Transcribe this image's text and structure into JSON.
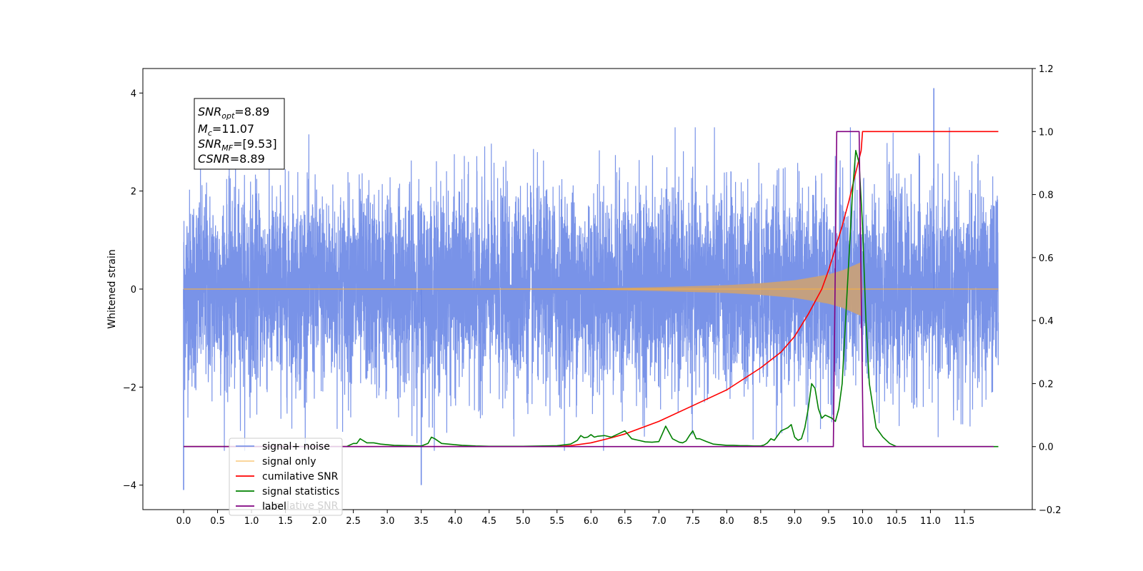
{
  "chart_data": {
    "type": "line",
    "title": "",
    "xlabel": "",
    "ylabel": "Whitened strain",
    "xlim": [
      -0.6,
      12.5
    ],
    "ylim_left": [
      -4.5,
      4.5
    ],
    "ylim_right": [
      -0.2,
      1.2
    ],
    "x_ticks": [
      0.0,
      0.5,
      1.0,
      1.5,
      2.0,
      2.5,
      3.0,
      3.5,
      4.0,
      4.5,
      5.0,
      5.5,
      6.0,
      6.5,
      7.0,
      7.5,
      8.0,
      8.5,
      9.0,
      9.5,
      10.0,
      10.5,
      11.0,
      11.5
    ],
    "x_tick_labels": [
      "0.0",
      "0.5",
      "1.0",
      "1.5",
      "2.0",
      "2.5",
      "3.0",
      "3.5",
      "4.0",
      "4.5",
      "5.0",
      "5.5",
      "6.0",
      "6.5",
      "7.0",
      "7.5",
      "8.0",
      "8.5",
      "9.0",
      "9.5",
      "10.0",
      "10.5",
      "11.0",
      "11.5"
    ],
    "y_left_ticks": [
      4,
      2,
      0,
      -2,
      -4
    ],
    "y_left_tick_labels": [
      "4",
      "2",
      "0",
      "−2",
      "−4"
    ],
    "y_right_ticks": [
      1.2,
      1.0,
      0.8,
      0.6,
      0.4,
      0.2,
      0.0,
      -0.2
    ],
    "y_right_tick_labels": [
      "1.2",
      "1.0",
      "0.8",
      "0.6",
      "0.4",
      "0.2",
      "0.0",
      "−0.2"
    ],
    "grid": false,
    "legend_position": "lower-left",
    "info_box": {
      "lines": [
        {
          "symbol": "SNR",
          "sub": "opt",
          "value": "=8.89"
        },
        {
          "symbol": "M",
          "sub": "c",
          "value": "=11.07"
        },
        {
          "symbol": "SNR",
          "sub": "MF",
          "value": "=[9.53]"
        },
        {
          "symbol": "CSNR",
          "sub": "",
          "value": "=8.89"
        }
      ]
    },
    "series": [
      {
        "name": "signal+ noise",
        "axis": "left",
        "color": "#6a87e6",
        "x_range": [
          0.0,
          12.0
        ],
        "std_estimate": 1.0,
        "observed_extremes": {
          "max": 4.1,
          "min": -4.1
        }
      },
      {
        "name": "signal only",
        "axis": "left",
        "color": "#f5b044",
        "x_range": [
          0.0,
          12.0
        ],
        "envelope": {
          "x": [
            0.0,
            6.0,
            7.0,
            8.0,
            8.5,
            9.0,
            9.3,
            9.5,
            9.7,
            9.9,
            9.98,
            10.0,
            12.0
          ],
          "amplitude": [
            0.0,
            0.01,
            0.04,
            0.08,
            0.12,
            0.18,
            0.25,
            0.3,
            0.38,
            0.5,
            0.55,
            0.0,
            0.0
          ]
        }
      },
      {
        "name": "cumilative SNR",
        "axis": "right",
        "color": "#ff0000",
        "x": [
          0.0,
          5.5,
          5.7,
          6.0,
          6.3,
          6.5,
          7.0,
          7.5,
          8.0,
          8.5,
          8.8,
          9.0,
          9.2,
          9.4,
          9.5,
          9.6,
          9.7,
          9.8,
          9.9,
          9.98,
          10.0,
          12.0
        ],
        "values": [
          0.0,
          0.0,
          0.003,
          0.012,
          0.028,
          0.04,
          0.08,
          0.13,
          0.18,
          0.25,
          0.3,
          0.35,
          0.42,
          0.5,
          0.56,
          0.63,
          0.7,
          0.78,
          0.87,
          0.94,
          1.0,
          1.0
        ]
      },
      {
        "name": "signal statistics",
        "axis": "right",
        "color": "#008000",
        "x": [
          0.0,
          2.4,
          2.5,
          2.55,
          2.6,
          2.7,
          2.8,
          2.9,
          3.0,
          3.1,
          3.3,
          3.5,
          3.6,
          3.65,
          3.7,
          3.8,
          3.9,
          4.0,
          4.1,
          4.3,
          4.5,
          4.8,
          5.0,
          5.3,
          5.5,
          5.7,
          5.8,
          5.85,
          5.9,
          5.95,
          6.0,
          6.05,
          6.1,
          6.2,
          6.3,
          6.4,
          6.5,
          6.6,
          6.7,
          6.8,
          6.9,
          7.0,
          7.05,
          7.1,
          7.2,
          7.3,
          7.35,
          7.4,
          7.45,
          7.5,
          7.55,
          7.6,
          7.7,
          7.8,
          7.9,
          8.0,
          8.1,
          8.2,
          8.3,
          8.4,
          8.5,
          8.55,
          8.6,
          8.65,
          8.7,
          8.75,
          8.8,
          8.85,
          8.9,
          8.95,
          9.0,
          9.05,
          9.1,
          9.15,
          9.2,
          9.25,
          9.3,
          9.35,
          9.4,
          9.45,
          9.5,
          9.55,
          9.6,
          9.65,
          9.7,
          9.75,
          9.8,
          9.85,
          9.9,
          9.95,
          10.0,
          10.05,
          10.1,
          10.2,
          10.3,
          10.4,
          10.5,
          12.0
        ],
        "values": [
          0.0,
          0.0,
          0.01,
          0.01,
          0.025,
          0.012,
          0.012,
          0.008,
          0.006,
          0.004,
          0.003,
          0.002,
          0.01,
          0.03,
          0.025,
          0.01,
          0.008,
          0.006,
          0.004,
          0.002,
          0.001,
          0.001,
          0.001,
          0.002,
          0.003,
          0.008,
          0.02,
          0.035,
          0.028,
          0.03,
          0.038,
          0.03,
          0.033,
          0.035,
          0.03,
          0.04,
          0.05,
          0.025,
          0.02,
          0.015,
          0.014,
          0.016,
          0.04,
          0.065,
          0.025,
          0.014,
          0.012,
          0.018,
          0.035,
          0.05,
          0.025,
          0.025,
          0.016,
          0.008,
          0.006,
          0.004,
          0.004,
          0.003,
          0.003,
          0.002,
          0.002,
          0.005,
          0.012,
          0.025,
          0.02,
          0.035,
          0.05,
          0.055,
          0.06,
          0.07,
          0.03,
          0.02,
          0.025,
          0.06,
          0.12,
          0.2,
          0.185,
          0.12,
          0.09,
          0.1,
          0.095,
          0.09,
          0.08,
          0.12,
          0.2,
          0.4,
          0.6,
          0.8,
          0.94,
          0.9,
          0.7,
          0.4,
          0.2,
          0.06,
          0.03,
          0.01,
          0.0,
          0.0
        ]
      },
      {
        "name": "label",
        "axis": "right",
        "color": "#800080",
        "x": [
          0.0,
          9.57,
          9.62,
          9.95,
          10.01,
          11.93
        ],
        "values": [
          0.0,
          0.0,
          1.0,
          1.0,
          0.0,
          0.0
        ]
      }
    ],
    "legend": {
      "entries": [
        "signal+ noise",
        "signal only",
        "cumilative SNR",
        "signal statistics",
        "label"
      ],
      "colors": [
        "#6a87e6",
        "#f5b044",
        "#ff0000",
        "#008000",
        "#800080"
      ],
      "ghost_text": "cumilative SNR"
    }
  }
}
